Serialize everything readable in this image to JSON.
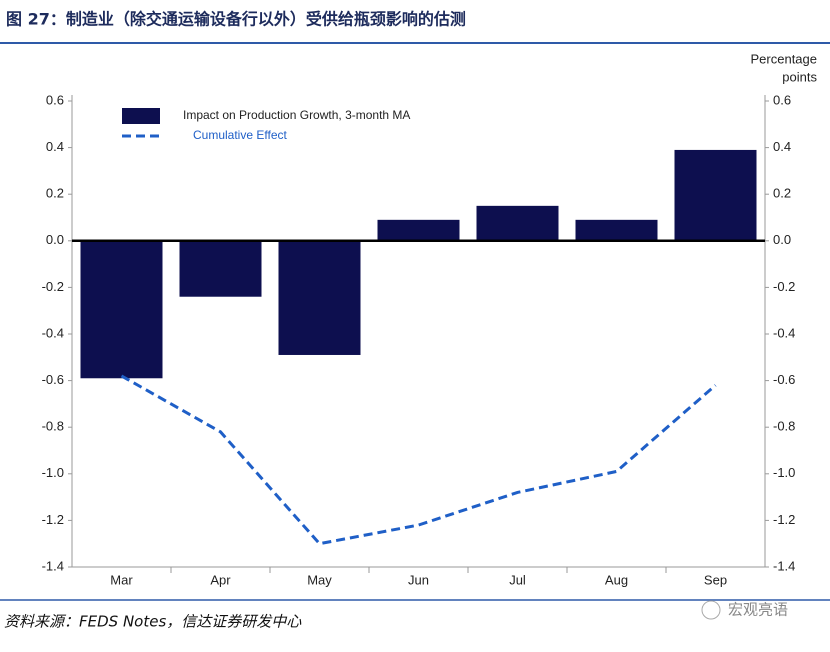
{
  "header": {
    "title": "图 27：制造业（除交通运输设备行以外）受供给瓶颈影响的估测"
  },
  "chart_data": {
    "type": "bar-line",
    "y2_label": [
      "Percentage",
      "points"
    ],
    "categories": [
      "Mar",
      "Apr",
      "May",
      "Jun",
      "Jul",
      "Aug",
      "Sep"
    ],
    "series": [
      {
        "name": "Impact on Production Growth, 3-month MA",
        "type": "bar",
        "color": "#0d0f4f",
        "values": [
          -0.59,
          -0.24,
          -0.49,
          0.09,
          0.15,
          0.09,
          0.39
        ]
      },
      {
        "name": "Cumulative Effect",
        "type": "line",
        "dashed": true,
        "color": "#1f5fc7",
        "values": [
          -0.58,
          -0.82,
          -1.3,
          -1.22,
          -1.08,
          -0.99,
          -0.62
        ]
      }
    ],
    "ylim": [
      -1.4,
      0.6
    ],
    "yticks": [
      0.6,
      0.4,
      0.2,
      {
        "value": 0,
        "label": "0.0"
      },
      -0.2,
      -0.4,
      -0.6,
      -0.8,
      {
        "value": -1,
        "label": "-1.0"
      },
      -1.2,
      -1.4
    ],
    "y2lim": [
      -1.4,
      0.6
    ],
    "y2ticks": [
      0.6,
      0.4,
      0.2,
      {
        "value": 0,
        "label": "0.0"
      },
      -0.2,
      -0.4,
      -0.6,
      -0.8,
      {
        "value": -1,
        "label": "-1.0"
      },
      -1.2,
      -1.4
    ],
    "legend": "upper left"
  },
  "footer": {
    "source": "资料来源：FEDS Notes，信达证券研发中心",
    "watermark": "宏观亮语"
  }
}
